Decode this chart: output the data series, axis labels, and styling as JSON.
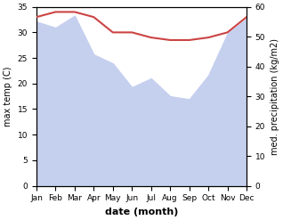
{
  "months": [
    "Jan",
    "Feb",
    "Mar",
    "Apr",
    "May",
    "Jun",
    "Jul",
    "Aug",
    "Sep",
    "Oct",
    "Nov",
    "Dec"
  ],
  "temp_max": [
    33,
    34,
    34,
    33,
    30,
    30,
    29,
    28.5,
    28.5,
    29,
    30,
    33
  ],
  "precip": [
    55,
    53,
    57,
    44,
    41,
    33,
    36,
    30,
    29,
    37,
    51,
    56
  ],
  "temp_color": "#cc4444",
  "precip_fill_color": "#c5cfee",
  "temp_ylim": [
    0,
    35
  ],
  "precip_ylim": [
    0,
    60
  ],
  "temp_yticks": [
    0,
    5,
    10,
    15,
    20,
    25,
    30,
    35
  ],
  "precip_yticks": [
    0,
    10,
    20,
    30,
    40,
    50,
    60
  ],
  "xlabel": "date (month)",
  "ylabel_left": "max temp (C)",
  "ylabel_right": "med. precipitation (kg/m2)",
  "background_color": "#ffffff",
  "plot_bg_color": "#ffffff"
}
